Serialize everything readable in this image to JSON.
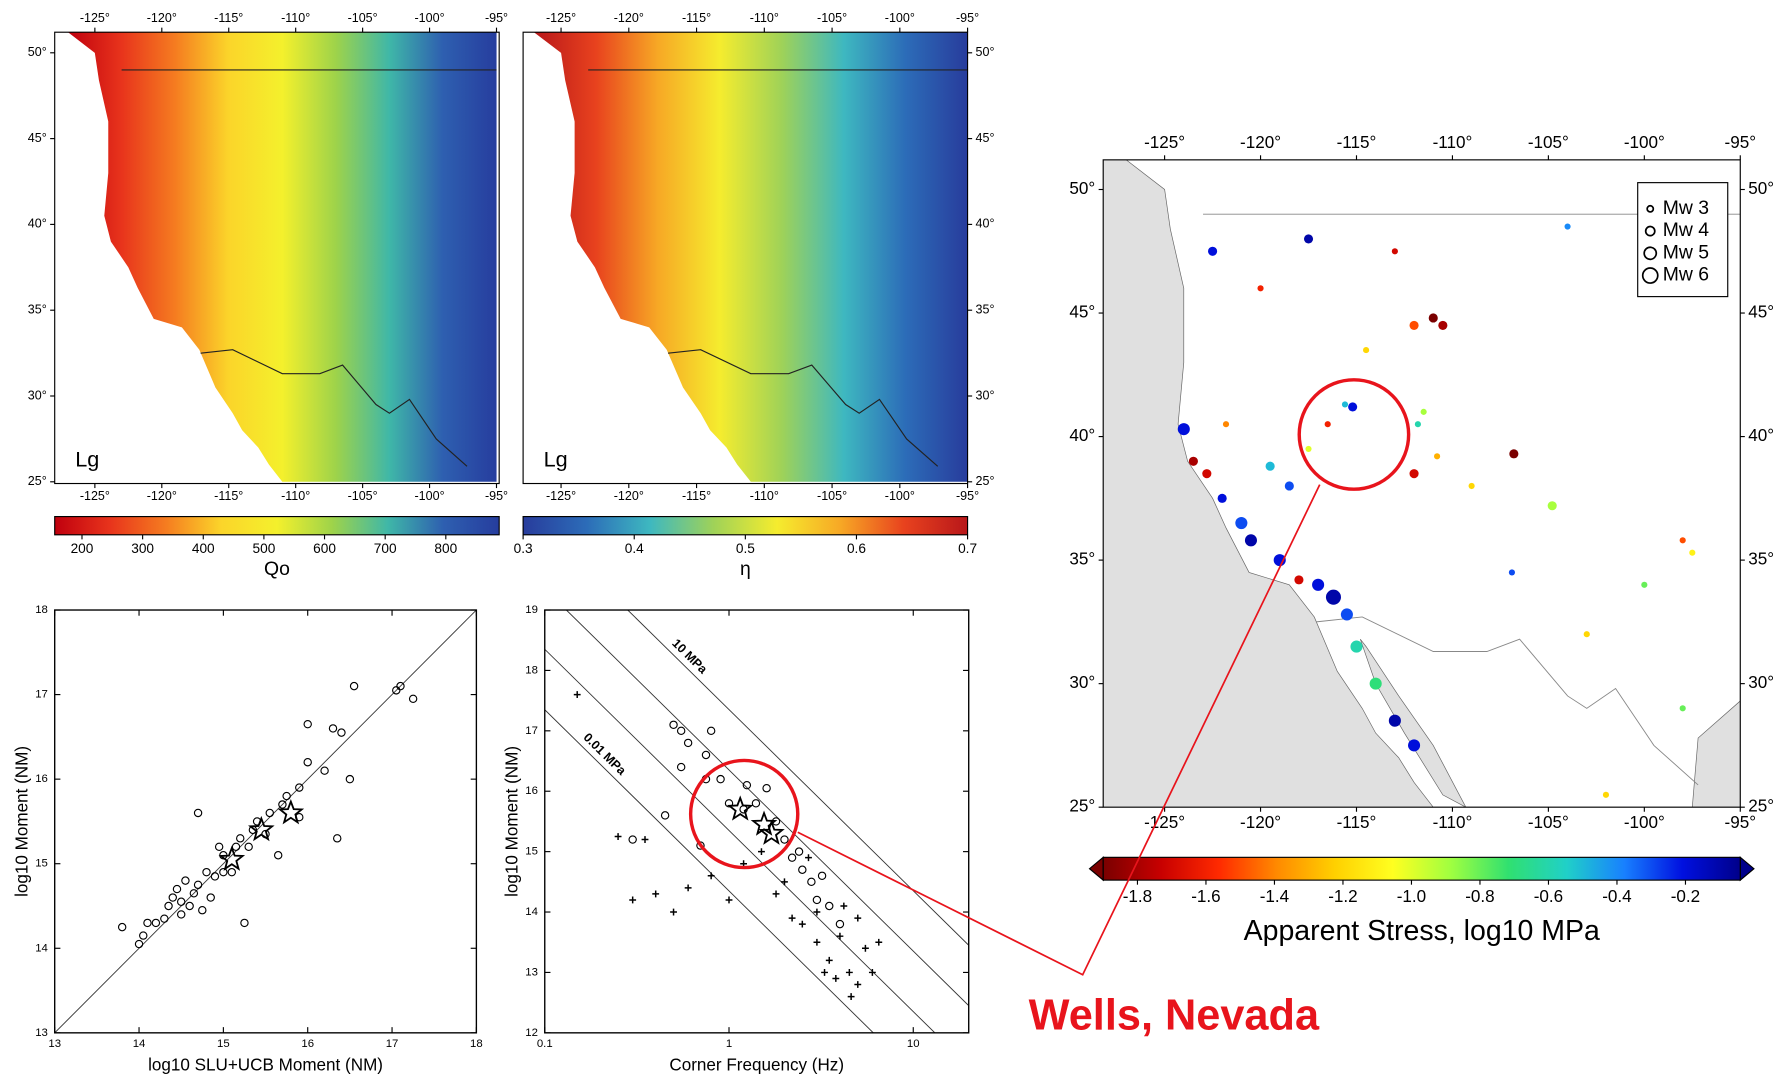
{
  "chart_data": [
    {
      "type": "map",
      "label": "Lg",
      "xlim": [
        -128,
        -94.8
      ],
      "ylim": [
        24.9,
        51.2
      ],
      "xticks": [
        {
          "value": -125,
          "label": "-125°"
        },
        {
          "value": -120,
          "label": "-120°"
        },
        {
          "value": -115,
          "label": "-115°"
        },
        {
          "value": -110,
          "label": "-110°"
        },
        {
          "value": -105,
          "label": "-105°"
        },
        {
          "value": -100,
          "label": "-100°"
        },
        {
          "value": -95,
          "label": "-95°"
        }
      ],
      "yticks": [
        {
          "value": 25,
          "label": "25°"
        },
        {
          "value": 30,
          "label": "30°"
        },
        {
          "value": 35,
          "label": "35°"
        },
        {
          "value": 40,
          "label": "40°"
        },
        {
          "value": 45,
          "label": "45°"
        },
        {
          "value": 50,
          "label": "50°"
        }
      ],
      "colorbar": {
        "label": "Qo",
        "lim": [
          155,
          888
        ],
        "ticks": [
          200,
          300,
          400,
          500,
          600,
          700,
          800
        ],
        "colormap": [
          "#c0000e",
          "#e8341c",
          "#f57c20",
          "#fbd52a",
          "#f4f02c",
          "#9ed34a",
          "#3fb7a8",
          "#2e5fb0",
          "#263d9e"
        ]
      }
    },
    {
      "type": "map",
      "label": "Lg",
      "xlim": [
        -127.8,
        -95
      ],
      "ylim": [
        24.9,
        51.2
      ],
      "xticks": [
        {
          "value": -125,
          "label": "-125°"
        },
        {
          "value": -120,
          "label": "-120°"
        },
        {
          "value": -115,
          "label": "-115°"
        },
        {
          "value": -110,
          "label": "-110°"
        },
        {
          "value": -105,
          "label": "-105°"
        },
        {
          "value": -100,
          "label": "-100°"
        },
        {
          "value": -95,
          "label": "-95°"
        }
      ],
      "yticks": [
        {
          "value": 25,
          "label": "25°"
        },
        {
          "value": 30,
          "label": "30°"
        },
        {
          "value": 35,
          "label": "35°"
        },
        {
          "value": 40,
          "label": "40°"
        },
        {
          "value": 45,
          "label": "45°"
        },
        {
          "value": 50,
          "label": "50°"
        }
      ],
      "colorbar": {
        "label": "η",
        "lim": [
          0.3,
          0.7
        ],
        "ticks": [
          0.3,
          0.4,
          0.5,
          0.6,
          0.7
        ],
        "colormap": [
          "#283c9c",
          "#2c6cb8",
          "#3eb8c0",
          "#9fd258",
          "#f5ec2e",
          "#f7a825",
          "#e8421e",
          "#b8171a"
        ]
      }
    },
    {
      "type": "scatter",
      "xlabel": "log10 SLU+UCB Moment (NM)",
      "ylabel": "log10 Moment (NM)",
      "xlim": [
        13,
        18
      ],
      "ylim": [
        13,
        18
      ],
      "xticks": [
        13,
        14,
        15,
        16,
        17,
        18
      ],
      "yticks": [
        13,
        14,
        15,
        16,
        17,
        18
      ],
      "lines": [
        {
          "x": [
            13,
            18
          ],
          "y": [
            13,
            18
          ]
        }
      ],
      "series": [
        {
          "marker": "circle",
          "color": "#000000",
          "x": [
            13.8,
            14,
            14.05,
            14.1,
            14.2,
            14.3,
            14.35,
            14.4,
            14.45,
            14.5,
            14.5,
            14.55,
            14.6,
            14.65,
            14.7,
            14.7,
            14.75,
            14.8,
            14.85,
            14.9,
            14.95,
            15,
            15,
            15.1,
            15.15,
            15.2,
            15.25,
            15.3,
            15.35,
            15.4,
            15.5,
            15.55,
            15.65,
            15.7,
            15.75,
            15.9,
            16,
            16,
            16.2,
            16.3,
            16.35,
            16.5,
            16.55,
            17.05,
            17.1,
            17.25,
            15.9,
            16.4
          ],
          "y": [
            14.25,
            14.05,
            14.15,
            14.3,
            14.3,
            14.35,
            14.5,
            14.6,
            14.7,
            14.55,
            14.4,
            14.8,
            14.5,
            14.65,
            14.75,
            15.6,
            14.45,
            14.9,
            14.6,
            14.85,
            15.2,
            14.9,
            15.1,
            14.9,
            15.2,
            15.3,
            14.3,
            15.2,
            15.4,
            15.5,
            15.35,
            15.6,
            15.1,
            15.7,
            15.8,
            15.9,
            16.2,
            16.65,
            16.1,
            16.6,
            15.3,
            16,
            17.1,
            17.05,
            17.1,
            16.95,
            15.55,
            16.55
          ]
        },
        {
          "marker": "star",
          "color": "#000000",
          "x": [
            15.1,
            15.45,
            15.8
          ],
          "y": [
            15.05,
            15.4,
            15.6
          ]
        }
      ]
    },
    {
      "type": "scatter",
      "xscale": "log",
      "xlabel": "Corner Frequency (Hz)",
      "ylabel": "log10 Moment (NM)",
      "xlim": [
        0.1,
        20
      ],
      "ylim": [
        12,
        19
      ],
      "xticks": [
        0.1,
        1,
        10
      ],
      "yticks": [
        12,
        13,
        14,
        15,
        16,
        17,
        18,
        19
      ],
      "lines": [
        {
          "label": "0.01 MPa",
          "x": [
            0.1,
            6.07
          ],
          "y": [
            17.35,
            12
          ]
        },
        {
          "x": [
            0.1,
            13.1
          ],
          "y": [
            18.35,
            12
          ]
        },
        {
          "x": [
            0.131,
            20
          ],
          "y": [
            19,
            12.45
          ]
        },
        {
          "label": "10 MPa",
          "x": [
            0.282,
            20
          ],
          "y": [
            19,
            13.45
          ]
        }
      ],
      "series": [
        {
          "marker": "circle",
          "color": "#000000",
          "x": [
            0.3,
            0.45,
            0.5,
            0.55,
            0.6,
            0.75,
            0.8,
            0.9,
            1,
            1.2,
            1.4,
            1.6,
            1.8,
            2,
            2.2,
            2.5,
            2.8,
            3,
            3.5,
            4,
            0.7,
            0.55,
            0.75,
            1.25,
            2.4,
            3.2
          ],
          "y": [
            15.2,
            15.6,
            17.1,
            17.0,
            16.8,
            16.6,
            17,
            16.2,
            15.8,
            15.7,
            15.8,
            16.05,
            15.5,
            15.2,
            14.9,
            14.7,
            14.5,
            14.2,
            14.1,
            13.8,
            15.1,
            16.4,
            16.2,
            16.1,
            15.0,
            14.6
          ]
        },
        {
          "marker": "cross",
          "color": "#000000",
          "x": [
            0.15,
            0.25,
            0.35,
            0.3,
            0.4,
            0.5,
            0.6,
            0.8,
            1,
            1.2,
            1.5,
            2,
            2.5,
            3,
            3.5,
            4,
            4.5,
            5,
            5.5,
            6,
            3,
            2.2,
            3.8,
            4.2,
            5,
            6.5,
            2.7,
            1.8,
            3.3,
            4.6
          ],
          "y": [
            17.6,
            15.25,
            15.2,
            14.2,
            14.3,
            14.0,
            14.4,
            14.6,
            14.2,
            14.8,
            15,
            14.5,
            13.8,
            13.5,
            13.2,
            13.6,
            13.0,
            12.8,
            13.4,
            13.0,
            14.0,
            13.9,
            12.9,
            14.1,
            13.9,
            13.5,
            14.9,
            14.3,
            13.0,
            12.6
          ]
        },
        {
          "marker": "star",
          "color": "#000000",
          "x": [
            1.15,
            1.55,
            1.7
          ],
          "y": [
            15.7,
            15.45,
            15.3
          ]
        }
      ]
    },
    {
      "type": "map",
      "xlim": [
        -128.2,
        -95
      ],
      "ylim": [
        25,
        51.2
      ],
      "xticks": [
        {
          "value": -125,
          "label": "-125°"
        },
        {
          "value": -120,
          "label": "-120°"
        },
        {
          "value": -115,
          "label": "-115°"
        },
        {
          "value": -110,
          "label": "-110°"
        },
        {
          "value": -105,
          "label": "-105°"
        },
        {
          "value": -100,
          "label": "-100°"
        },
        {
          "value": -95,
          "label": "-95°"
        }
      ],
      "yticks": [
        {
          "value": 25,
          "label": "25°"
        },
        {
          "value": 30,
          "label": "30°"
        },
        {
          "value": 35,
          "label": "35°"
        },
        {
          "value": 40,
          "label": "40°"
        },
        {
          "value": 45,
          "label": "45°"
        },
        {
          "value": 50,
          "label": "50°"
        }
      ],
      "events": {
        "x": [
          -124,
          -123.5,
          -122.8,
          -122,
          -121,
          -120.5,
          -119,
          -118,
          -117,
          -116.2,
          -115.5,
          -115,
          -114,
          -113,
          -112,
          -121.8,
          -119.5,
          -118.5,
          -117.5,
          -116.5,
          -115.2,
          -115.6,
          -114.5,
          -112,
          -111,
          -110.5,
          -111.5,
          -112,
          -111.8,
          -110.8,
          -109,
          -106.8,
          -104.8,
          -106.9,
          -103,
          -98,
          -97.5,
          -100,
          -117.5,
          -122.5,
          -120,
          -113,
          -104,
          -98,
          -102
        ],
        "y": [
          40.3,
          39,
          38.5,
          37.5,
          36.5,
          35.8,
          35,
          34.2,
          34,
          33.5,
          32.8,
          31.5,
          30,
          28.5,
          27.5,
          40.5,
          38.8,
          38,
          39.5,
          40.5,
          41.2,
          41.3,
          43.5,
          44.5,
          44.8,
          44.5,
          41,
          38.5,
          40.5,
          39.2,
          38,
          39.3,
          37.2,
          34.5,
          32,
          35.8,
          35.3,
          34,
          48,
          47.5,
          46,
          47.5,
          48.5,
          29,
          25.5
        ],
        "values": [
          -0.2,
          -1.8,
          -1.7,
          -0.2,
          -0.3,
          -0.1,
          -0.2,
          -1.7,
          -0.2,
          -0.1,
          -0.3,
          -0.6,
          -0.7,
          -0.1,
          -0.2,
          -1.4,
          -0.5,
          -0.3,
          -1.0,
          -1.6,
          -0.2,
          -0.5,
          -1.2,
          -1.5,
          -1.9,
          -1.8,
          -0.9,
          -1.7,
          -0.6,
          -1.3,
          -1.2,
          -1.9,
          -0.9,
          -0.3,
          -1.2,
          -1.5,
          -1.1,
          -0.8,
          -0.1,
          -0.2,
          -1.6,
          -1.7,
          -0.4,
          -0.8,
          -1.2
        ],
        "sizes": [
          5,
          4,
          4,
          4,
          5,
          5,
          5,
          4,
          5,
          6,
          5,
          5,
          5,
          5,
          5,
          3,
          4,
          4,
          3,
          3,
          4,
          3,
          3,
          4,
          4,
          4,
          3,
          4,
          3,
          3,
          3,
          4,
          4,
          3,
          3,
          3,
          3,
          3,
          4,
          4,
          3,
          3,
          3,
          3,
          3
        ]
      },
      "legend": [
        {
          "label": "Mw 3",
          "value": 3
        },
        {
          "label": "Mw 4",
          "value": 4
        },
        {
          "label": "Mw 5",
          "value": 5
        },
        {
          "label": "Mw 6",
          "value": 6
        }
      ],
      "colorbar": {
        "label": "Apparent Stress, log10 MPa",
        "lim": [
          -1.9,
          -0.04
        ],
        "extend": true,
        "ticks": [
          -1.8,
          -1.6,
          -1.4,
          -1.2,
          {
            "value": -1,
            "label": "-1.0"
          },
          -0.8,
          -0.6,
          -0.4,
          -0.2
        ],
        "colormap": [
          "#7a0000",
          "#c80000",
          "#ff2a00",
          "#ff8a00",
          "#ffd000",
          "#ffff20",
          "#a0ff40",
          "#30e070",
          "#20d0c8",
          "#1880ff",
          "#0010e0",
          "#00008a"
        ]
      },
      "annotation": "Wells, Nevada"
    }
  ]
}
